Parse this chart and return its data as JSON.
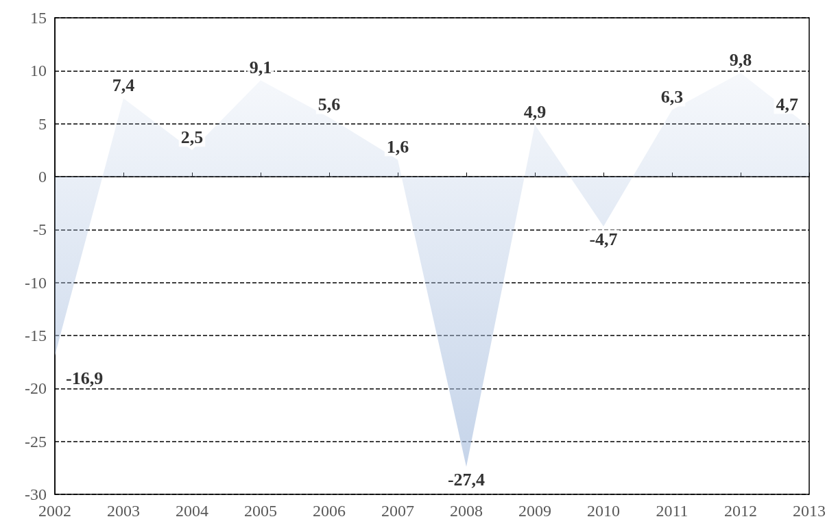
{
  "chart_data": {
    "type": "area",
    "categories": [
      "2002",
      "2003",
      "2004",
      "2005",
      "2006",
      "2007",
      "2008",
      "2009",
      "2010",
      "2011",
      "2012",
      "2013"
    ],
    "series": [
      {
        "color": "#a9bfdf",
        "values": [
          -16.9,
          7.4,
          2.5,
          9.1,
          5.6,
          1.6,
          -27.4,
          4.9,
          -4.7,
          6.3,
          9.8,
          4.7
        ],
        "value_labels": [
          "-16,9",
          "7,4",
          "2,5",
          "9,1",
          "5,6",
          "1,6",
          "-27,4",
          "4,9",
          "-4,7",
          "6,3",
          "9,8",
          "4,7"
        ]
      }
    ],
    "ylim": [
      -30,
      15
    ],
    "yticks": [
      -30,
      -25,
      -20,
      -15,
      -10,
      -5,
      0,
      5,
      10,
      15
    ],
    "grid": "y",
    "marker": "none"
  }
}
